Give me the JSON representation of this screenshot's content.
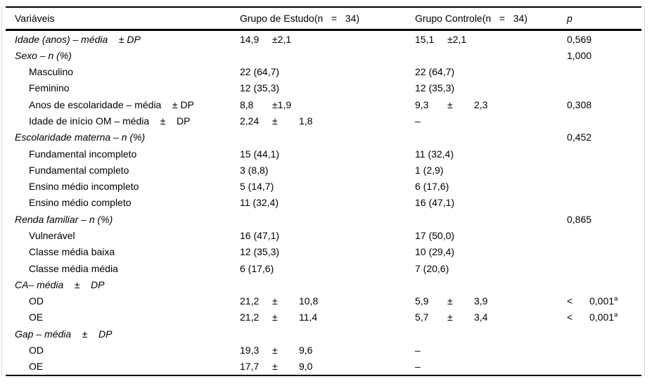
{
  "colors": {
    "rule": "#000000",
    "frame_border": "#d8d8d8",
    "text": "#000000",
    "background": "#ffffff"
  },
  "table": {
    "columns": [
      "Variáveis",
      "Grupo de Estudo(n   =   34)",
      "Grupo Controle(n   =   34)",
      "p"
    ],
    "rows": [
      {
        "label": "Idade (anos) – média    ± DP",
        "italic": true,
        "study": [
          "14,9",
          "±2,1"
        ],
        "control": [
          "15,1",
          "±2,1"
        ],
        "p": {
          "val": "0,569"
        }
      },
      {
        "label": "Sexo – n (%)",
        "italic": true,
        "p": {
          "val": "1,000"
        }
      },
      {
        "label": "Masculino",
        "indent": true,
        "study": [
          "22 (64,7)"
        ],
        "control": [
          "22 (64,7)"
        ]
      },
      {
        "label": "Feminino",
        "indent": true,
        "study": [
          "12 (35,3)"
        ],
        "control": [
          "12 (35,3)"
        ]
      },
      {
        "label": "Anos de escolaridade – média    ± DP",
        "indent": true,
        "study": [
          "8,8",
          "±1,9"
        ],
        "control": [
          "9,3",
          "±",
          "2,3"
        ],
        "p": {
          "val": "0,308"
        }
      },
      {
        "label": "Idade de início OM – média    ±    DP",
        "indent": true,
        "study": [
          "2,24",
          "±",
          "1,8"
        ],
        "control": [
          "–"
        ]
      },
      {
        "label": "Escolaridade materna – n (%)",
        "italic": true,
        "p": {
          "val": "0,452"
        }
      },
      {
        "label": "Fundamental incompleto",
        "indent": true,
        "study": [
          "15 (44,1)"
        ],
        "control": [
          "11 (32,4)"
        ]
      },
      {
        "label": "Fundamental completo",
        "indent": true,
        "study": [
          "3 (8,8)"
        ],
        "control": [
          "1 (2,9)"
        ]
      },
      {
        "label": "Ensino médio incompleto",
        "indent": true,
        "study": [
          "5 (14,7)"
        ],
        "control": [
          "6 (17,6)"
        ]
      },
      {
        "label": "Ensino médio completo",
        "indent": true,
        "study": [
          "11 (32,4)"
        ],
        "control": [
          "16 (47,1)"
        ]
      },
      {
        "label": "Renda familiar – n (%)",
        "italic": true,
        "p": {
          "val": "0,865"
        }
      },
      {
        "label": "Vulnerável",
        "indent": true,
        "study": [
          "16 (47,1)"
        ],
        "control": [
          "17 (50,0)"
        ]
      },
      {
        "label": "Classe média baixa",
        "indent": true,
        "study": [
          "12 (35,3)"
        ],
        "control": [
          "10 (29,4)"
        ]
      },
      {
        "label": "Classe média média",
        "indent": true,
        "study": [
          "6 (17,6)"
        ],
        "control": [
          "7 (20,6)"
        ]
      },
      {
        "label": "CA– média    ±    DP",
        "italic": true
      },
      {
        "label": "OD",
        "indent": true,
        "study": [
          "21,2",
          "±",
          "10,8"
        ],
        "control": [
          "5,9",
          "±",
          "3,9"
        ],
        "p": {
          "lt": "<",
          "val": "0,001",
          "sup": "a"
        }
      },
      {
        "label": "OE",
        "indent": true,
        "study": [
          "21,2",
          "±",
          "11,4"
        ],
        "control": [
          "5,7",
          "±",
          "3,4"
        ],
        "p": {
          "lt": "<",
          "val": "0,001",
          "sup": "a"
        }
      },
      {
        "label": "Gap – média    ±    DP",
        "italic": true
      },
      {
        "label": "OD",
        "indent": true,
        "study": [
          "19,3",
          "±",
          "9,6"
        ],
        "control": [
          "–"
        ]
      },
      {
        "label": "OE",
        "indent": true,
        "study": [
          "17,7",
          "±",
          "9,0"
        ],
        "control": [
          "–"
        ]
      }
    ]
  }
}
